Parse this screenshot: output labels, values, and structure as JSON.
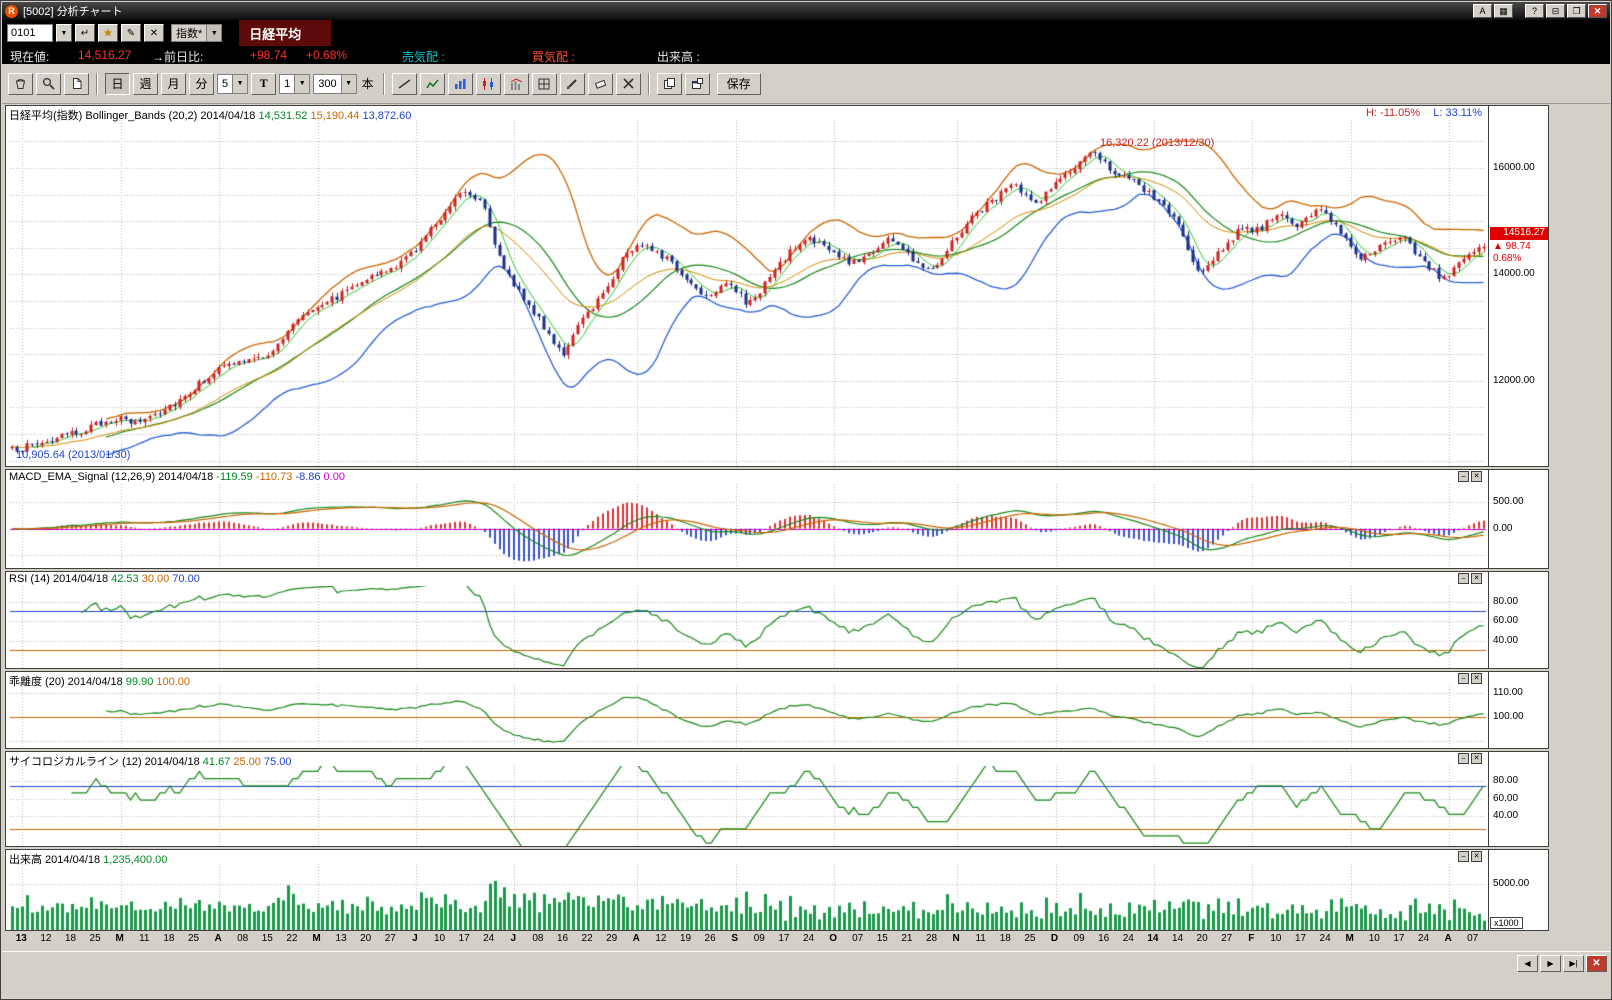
{
  "window": {
    "title": "[5002]  分析チャート",
    "logo": "R",
    "buttons": [
      "A",
      "▦",
      "?",
      "⊟",
      "❐",
      "✕"
    ]
  },
  "icons": {
    "dropdown": "▼"
  },
  "panel_controls": [
    "–",
    "✕"
  ],
  "symbol_bar": {
    "code": "0101",
    "small_buttons": [
      "↵",
      "★",
      "✎",
      "✕"
    ],
    "category": "指数*",
    "instrument": "日経平均"
  },
  "quote_bar": {
    "label_current": "現在値:",
    "current": "14,516.27",
    "label_change": "→前日比:",
    "change": "+98.74",
    "change_pct": "+0.68%",
    "label_ask": "売気配 :",
    "label_bid": "買気配 :",
    "label_volume": "出来高 :"
  },
  "toolbar": {
    "day": "日",
    "week": "週",
    "month": "月",
    "minute": "分",
    "ma_value": "5",
    "t": "T",
    "interval": "1",
    "bars": "300",
    "unit": "本",
    "save": "保存"
  },
  "bottom_nav": [
    "◀",
    "▶",
    "▶|",
    "✕"
  ],
  "chart_data": {
    "type": "candlestick-multi-panel",
    "bars": 300,
    "x_labels": [
      "13",
      "12",
      "18",
      "25",
      "M",
      "11",
      "18",
      "25",
      "A",
      "08",
      "15",
      "22",
      "M",
      "13",
      "20",
      "27",
      "J",
      "10",
      "17",
      "24",
      "J",
      "08",
      "16",
      "22",
      "29",
      "A",
      "12",
      "19",
      "26",
      "S",
      "09",
      "17",
      "24",
      "O",
      "07",
      "15",
      "21",
      "28",
      "N",
      "11",
      "18",
      "25",
      "D",
      "09",
      "16",
      "24",
      "14",
      "14",
      "20",
      "27",
      "F",
      "10",
      "17",
      "24",
      "M",
      "10",
      "17",
      "24",
      "A",
      "07"
    ],
    "month_label_indices": [
      0,
      4,
      8,
      12,
      16,
      20,
      25,
      29,
      33,
      38,
      42,
      46,
      50,
      54,
      58
    ],
    "price_anchors": [
      10700,
      10800,
      10900,
      11000,
      11150,
      11300,
      11200,
      11400,
      11600,
      11900,
      12200,
      12350,
      12400,
      12650,
      13200,
      13450,
      13600,
      13900,
      14000,
      14200,
      14600,
      15100,
      15600,
      15400,
      14100,
      13600,
      13000,
      12500,
      13200,
      13700,
      14400,
      14600,
      14300,
      13900,
      13600,
      13900,
      13400,
      13900,
      14400,
      14700,
      14450,
      14200,
      14400,
      14700,
      14300,
      14100,
      14600,
      15100,
      15400,
      15700,
      15300,
      15700,
      16000,
      16300,
      15900,
      15700,
      15400,
      15000,
      14000,
      14400,
      14800,
      14850,
      15100,
      14900,
      15300,
      14800,
      14300,
      14500,
      14700,
      14300,
      13900,
      14300,
      14516
    ],
    "colors": {
      "up": "#cc2222",
      "down": "#1a2f8a",
      "bb_upper": "#cc6600",
      "bb_lower": "#2b5fd9",
      "sma20": "#1a8a1a",
      "ma5": "#2ecc2e",
      "ema21": "#d98c00",
      "macd_line": "#1a8a1a",
      "signal_line": "#cc6600",
      "hist_pos": "#dd3333",
      "hist_neg": "#3a52cc",
      "line": "#1a8a1a",
      "volume": "#1a9a4a"
    },
    "panels": [
      {
        "id": "main",
        "title_parts": [
          [
            "日経平均(指数) Bollinger_Bands (20,2) 2014/04/18 ",
            "#000000"
          ],
          [
            "14,531.52",
            "#008822"
          ],
          [
            " 15,190.44",
            "#cc6600"
          ],
          [
            " 13,872.60",
            "#2244cc"
          ]
        ],
        "range": [
          10400,
          16900
        ],
        "grid_step": 500,
        "axis_labels": [
          [
            16000,
            "16000.00"
          ],
          [
            14000,
            "14000.00"
          ],
          [
            12000,
            "12000.00"
          ]
        ],
        "high_label": [
          "H: -11.05%",
          "#cc2222"
        ],
        "low_label": [
          "L: 33.11%",
          "#2244cc"
        ],
        "annotation_peak": [
          "16,320.22 (2013/12/30)",
          "#cc2222"
        ],
        "annotation_trough": [
          "10,905.64 (2013/01/30)",
          "#2244cc"
        ],
        "price_tag": [
          "14516.27",
          "▲ 98.74",
          "0.68%"
        ],
        "hlines": [],
        "grid_vals": []
      },
      {
        "id": "macd",
        "title_parts": [
          [
            "MACD_EMA_Signal (12,26,9) 2014/04/18 ",
            "#000000"
          ],
          [
            "-119.59",
            "#008822"
          ],
          [
            " -110.73",
            "#cc6600"
          ],
          [
            " -8.86",
            "#2244cc"
          ],
          [
            " 0.00",
            "#cc00cc"
          ]
        ],
        "range": [
          -750,
          850
        ],
        "axis_labels": [
          [
            500,
            "500.00"
          ],
          [
            0,
            "0.00"
          ]
        ],
        "hlines": [
          [
            0,
            "#cc00cc"
          ]
        ],
        "grid_vals": [
          500,
          0,
          -500
        ]
      },
      {
        "id": "rsi",
        "title_parts": [
          [
            "RSI (14) 2014/04/18 ",
            "#000000"
          ],
          [
            "42.53",
            "#008822"
          ],
          [
            " 30.00",
            "#cc6600"
          ],
          [
            " 70.00",
            "#2244cc"
          ]
        ],
        "range": [
          12,
          96
        ],
        "axis_labels": [
          [
            80,
            "80.00"
          ],
          [
            60,
            "60.00"
          ],
          [
            40,
            "40.00"
          ]
        ],
        "hlines": [
          [
            70,
            "#2244cc"
          ],
          [
            30,
            "#cc6600"
          ]
        ],
        "grid_vals": [
          80,
          60,
          40
        ]
      },
      {
        "id": "dev",
        "title_parts": [
          [
            "乖離度 (20) 2014/04/18 ",
            "#000000"
          ],
          [
            "99.90",
            "#008822"
          ],
          [
            " 100.00",
            "#cc6600"
          ]
        ],
        "range": [
          87,
          113
        ],
        "axis_labels": [
          [
            110,
            "110.00"
          ],
          [
            100,
            "100.00"
          ]
        ],
        "hlines": [
          [
            100,
            "#cc6600"
          ]
        ],
        "grid_vals": [
          110,
          100,
          90
        ]
      },
      {
        "id": "psych",
        "title_parts": [
          [
            "サイコロジカルライン (12) 2014/04/18 ",
            "#000000"
          ],
          [
            "41.67",
            "#008822"
          ],
          [
            " 25.00",
            "#cc6600"
          ],
          [
            " 75.00",
            "#2244cc"
          ]
        ],
        "range": [
          5,
          98
        ],
        "axis_labels": [
          [
            80,
            "80.00"
          ],
          [
            60,
            "60.00"
          ],
          [
            40,
            "40.00"
          ]
        ],
        "hlines": [
          [
            75,
            "#2244cc"
          ],
          [
            25,
            "#cc6600"
          ]
        ],
        "grid_vals": [
          80,
          60,
          40
        ]
      },
      {
        "id": "vol",
        "title_parts": [
          [
            "出来高 2014/04/18 ",
            "#000000"
          ],
          [
            "1,235,400.00",
            "#008822"
          ]
        ],
        "range": [
          0,
          7200
        ],
        "axis_labels": [
          [
            5000,
            "5000.00"
          ]
        ],
        "hlines": [],
        "grid_vals": [
          5000
        ],
        "unit": "x1000"
      }
    ]
  }
}
